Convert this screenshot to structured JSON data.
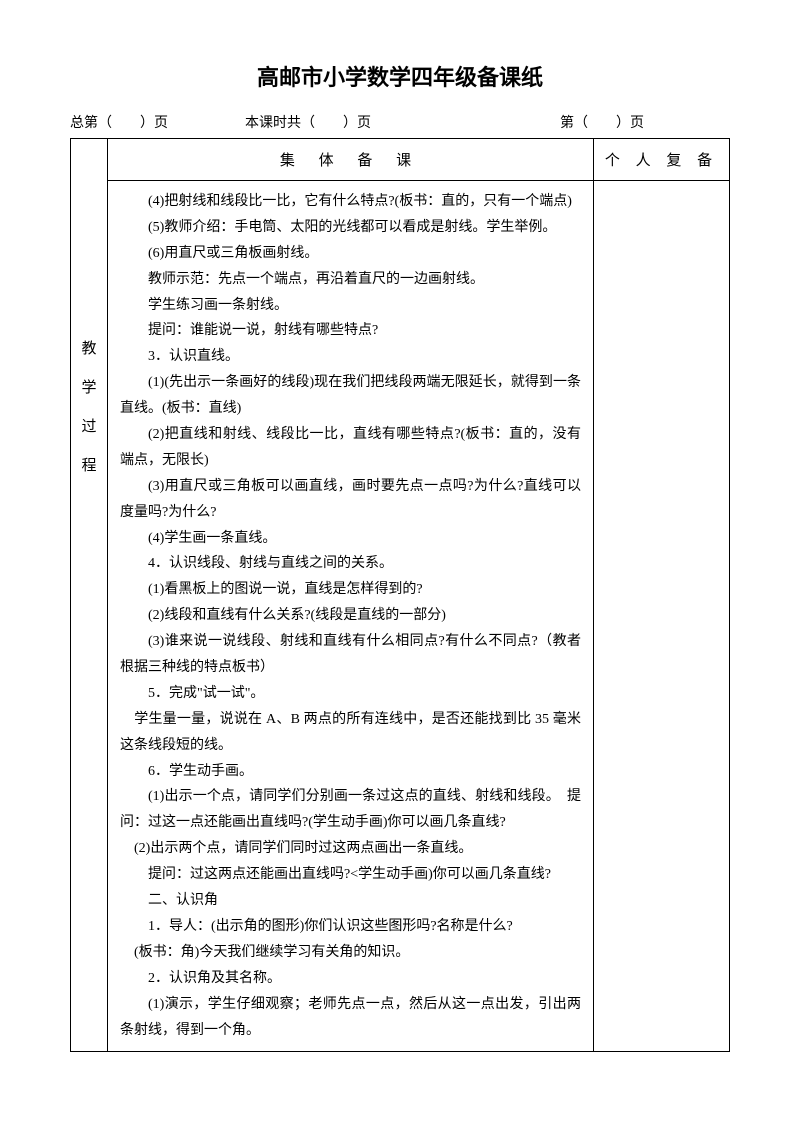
{
  "title": "高邮市小学数学四年级备课纸",
  "header": {
    "left_prefix": "总第（",
    "left_suffix": "）页",
    "mid_prefix": "本课时共（",
    "mid_suffix": "）页",
    "right_prefix": "第（",
    "right_suffix": "）页"
  },
  "table": {
    "main_header": "集 体 备 课",
    "side_header": "个 人 复 备",
    "label_chars": [
      "教",
      "学",
      "过",
      "程"
    ],
    "paragraphs": [
      "(4)把射线和线段比一比，它有什么特点?(板书：直的，只有一个端点)",
      "(5)教师介绍：手电筒、太阳的光线都可以看成是射线。学生举例。",
      "(6)用直尺或三角板画射线。",
      "教师示范：先点一个端点，再沿着直尺的一边画射线。",
      "学生练习画一条射线。",
      "提问：谁能说一说，射线有哪些特点?",
      "3．认识直线。",
      "(1)(先出示一条画好的线段)现在我们把线段两端无限延长，就得到一条直线。(板书：直线)",
      "(2)把直线和射线、线段比一比，直线有哪些特点?(板书：直的，没有端点，无限长)",
      "(3)用直尺或三角板可以画直线，画时要先点一点吗?为什么?直线可以度量吗?为什么?",
      "(4)学生画一条直线。",
      "4．认识线段、射线与直线之间的关系。",
      "(1)看黑板上的图说一说，直线是怎样得到的?",
      "(2)线段和直线有什么关系?(线段是直线的一部分)",
      "(3)谁来说一说线段、射线和直线有什么相同点?有什么不同点?（教者根据三种线的特点板书）",
      "5．完成\"试一试\"。",
      "　学生量一量，说说在 A、B 两点的所有连线中，是否还能找到比 35 毫米这条线段短的线。",
      "6．学生动手画。",
      "(1)出示一个点，请同学们分别画一条过这点的直线、射线和线段。　提问：过这一点还能画出直线吗?(学生动手画)你可以画几条直线?",
      "　(2)出示两个点，请同学们同时过这两点画出一条直线。",
      "提问：过这两点还能画出直线吗?<学生动手画)你可以画几条直线?",
      "二、认识角",
      "1．导人：(出示角的图形)你们认识这些图形吗?名称是什么?",
      "　(板书：角)今天我们继续学习有关角的知识。",
      "2．认识角及其名称。",
      "(1)演示，学生仔细观察；老师先点一点，然后从这一点出发，引出两条射线，得到一个角。"
    ]
  }
}
